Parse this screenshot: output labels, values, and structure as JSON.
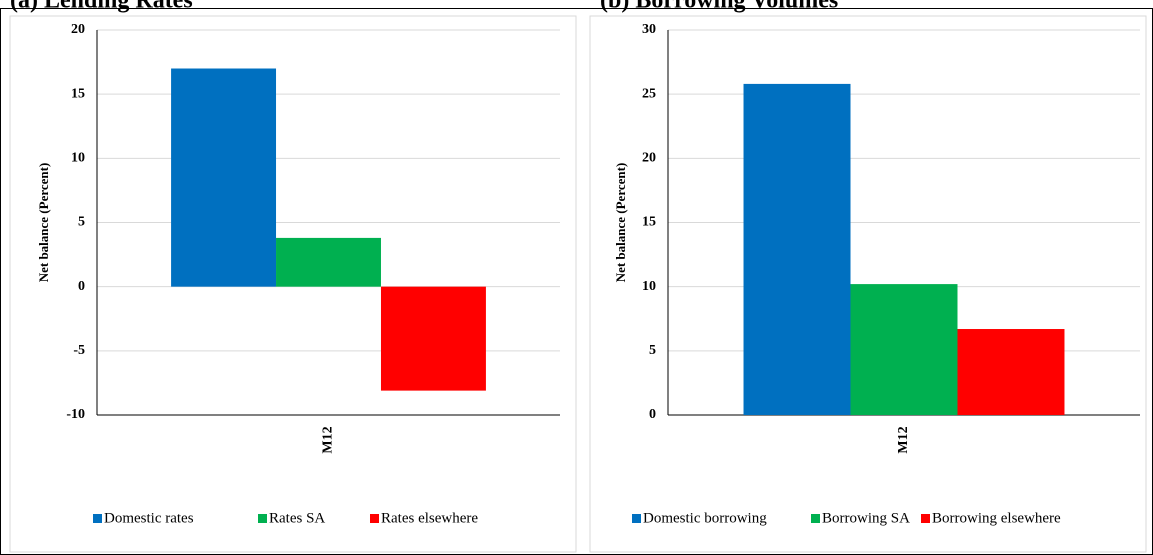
{
  "chart_data": [
    {
      "type": "bar",
      "title": "(a) Lending Rates",
      "y_label": "Net balance (Percent)",
      "categories": [
        "M12"
      ],
      "series": [
        {
          "name": "Domestic rates",
          "color": "#0070c0",
          "values": [
            17
          ]
        },
        {
          "name": "Rates SA",
          "color": "#00b050",
          "values": [
            3.8
          ]
        },
        {
          "name": "Rates elsewhere",
          "color": "#ff0000",
          "values": [
            -8.1
          ]
        }
      ],
      "ylim": [
        -10,
        20
      ],
      "yticks": [
        -10,
        -5,
        0,
        5,
        10,
        15,
        20
      ],
      "grid": true
    },
    {
      "type": "bar",
      "title": "(b) Borrowing Volumes",
      "y_label": "Net balance (Percent)",
      "categories": [
        "M12"
      ],
      "series": [
        {
          "name": "Domestic borrowing",
          "color": "#0070c0",
          "values": [
            25.8
          ]
        },
        {
          "name": "Borrowing SA",
          "color": "#00b050",
          "values": [
            10.2
          ]
        },
        {
          "name": "Borrowing elsewhere",
          "color": "#ff0000",
          "values": [
            6.7
          ]
        }
      ],
      "ylim": [
        0,
        30
      ],
      "yticks": [
        0,
        5,
        10,
        15,
        20,
        25,
        30
      ],
      "grid": true
    }
  ]
}
